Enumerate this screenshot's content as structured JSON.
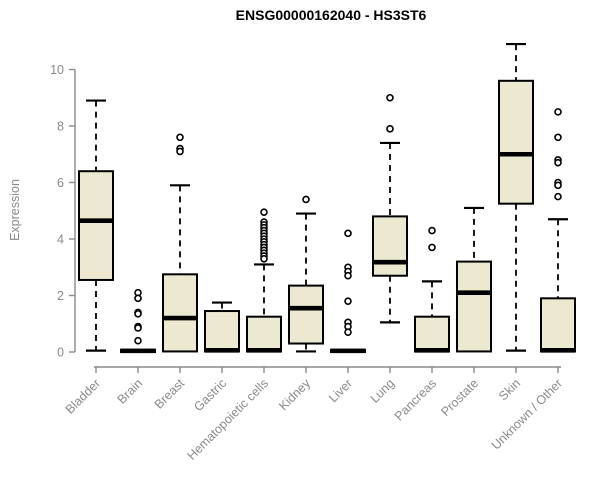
{
  "chart_data": {
    "type": "boxplot",
    "title": "ENSG00000162040 - HS3ST6",
    "xlabel": "",
    "ylabel": "Expression",
    "ylim": [
      0,
      10
    ],
    "yticks": [
      0,
      2,
      4,
      6,
      8,
      10
    ],
    "grid": false,
    "legend": "none",
    "categories": [
      "Bladder",
      "Brain",
      "Breast",
      "Gastric",
      "Hematopoietic cells",
      "Kidney",
      "Liver",
      "Lung",
      "Pancreas",
      "Prostate",
      "Skin",
      "Unknown / Other"
    ],
    "series": [
      {
        "name": "Bladder",
        "whisker_low": 0.05,
        "q1": 2.55,
        "median": 4.65,
        "q3": 6.4,
        "whisker_high": 8.9,
        "outliers": []
      },
      {
        "name": "Brain",
        "whisker_low": 0.0,
        "q1": 0.0,
        "median": 0.04,
        "q3": 0.08,
        "whisker_high": 0.08,
        "outliers": [
          2.1,
          1.9,
          1.4,
          1.35,
          0.9,
          0.85,
          0.4
        ]
      },
      {
        "name": "Breast",
        "whisker_low": 0.02,
        "q1": 0.02,
        "median": 1.2,
        "q3": 2.75,
        "whisker_high": 5.9,
        "outliers": [
          7.6,
          7.2,
          7.1
        ]
      },
      {
        "name": "Gastric",
        "whisker_low": 0.02,
        "q1": 0.02,
        "median": 0.06,
        "q3": 1.45,
        "whisker_high": 1.75,
        "outliers": []
      },
      {
        "name": "Hematopoietic cells",
        "whisker_low": 0.02,
        "q1": 0.02,
        "median": 0.06,
        "q3": 1.25,
        "whisker_high": 3.1,
        "outliers": [
          4.95,
          4.6,
          4.5,
          4.4,
          4.3,
          4.2,
          4.1,
          4.0,
          3.9,
          3.8,
          3.7,
          3.6,
          3.5,
          3.4,
          3.3
        ]
      },
      {
        "name": "Kidney",
        "whisker_low": 0.02,
        "q1": 0.3,
        "median": 1.55,
        "q3": 2.35,
        "whisker_high": 4.9,
        "outliers": [
          5.4
        ]
      },
      {
        "name": "Liver",
        "whisker_low": 0.0,
        "q1": 0.0,
        "median": 0.04,
        "q3": 0.08,
        "whisker_high": 0.08,
        "outliers": [
          4.2,
          3.0,
          2.85,
          2.7,
          1.8,
          1.05,
          0.9,
          0.7
        ]
      },
      {
        "name": "Lung",
        "whisker_low": 1.05,
        "q1": 2.7,
        "median": 3.18,
        "q3": 4.8,
        "whisker_high": 7.4,
        "outliers": [
          9.0,
          7.9
        ]
      },
      {
        "name": "Pancreas",
        "whisker_low": 0.02,
        "q1": 0.02,
        "median": 0.06,
        "q3": 1.25,
        "whisker_high": 2.5,
        "outliers": [
          4.3,
          3.7
        ]
      },
      {
        "name": "Prostate",
        "whisker_low": 0.02,
        "q1": 0.02,
        "median": 2.1,
        "q3": 3.2,
        "whisker_high": 5.1,
        "outliers": []
      },
      {
        "name": "Skin",
        "whisker_low": 0.05,
        "q1": 5.25,
        "median": 7.0,
        "q3": 9.6,
        "whisker_high": 10.9,
        "outliers": []
      },
      {
        "name": "Unknown / Other",
        "whisker_low": 0.02,
        "q1": 0.02,
        "median": 0.06,
        "q3": 1.9,
        "whisker_high": 4.7,
        "outliers": [
          8.5,
          7.6,
          6.8,
          6.7,
          6.0,
          5.9,
          5.5
        ]
      }
    ],
    "style": {
      "box_fill": "#ede8d0",
      "box_stroke": "#000000",
      "median_color": "#000000",
      "whisker_color": "#000000",
      "outlier_marker": "open-circle",
      "axis_color": "#8a8a8a",
      "tick_label_color": "#8a8a8a",
      "title_color": "#000000",
      "background": "#ffffff"
    }
  }
}
